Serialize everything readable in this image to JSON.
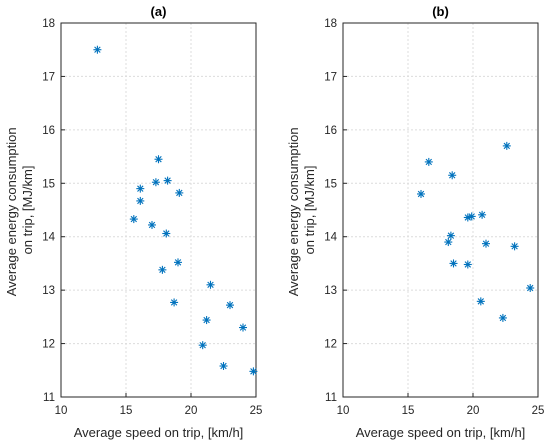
{
  "colors": {
    "marker": "#0072BD",
    "axis": "#262626",
    "grid": "#dcdcdc"
  },
  "chart_data": [
    {
      "type": "scatter",
      "title": "(a)",
      "xlabel": "Average speed on trip, [km/h]",
      "ylabel": [
        "Average energy consumption",
        "on trip, [MJ/km]"
      ],
      "xlim": [
        10,
        25
      ],
      "ylim": [
        11,
        18
      ],
      "xticks": [
        "10",
        "15",
        "20",
        "25"
      ],
      "yticks": [
        "11",
        "12",
        "13",
        "14",
        "15",
        "16",
        "17",
        "18"
      ],
      "grid": true,
      "marker": "asterisk",
      "points": [
        {
          "x": 12.8,
          "y": 17.5
        },
        {
          "x": 17.5,
          "y": 15.45
        },
        {
          "x": 16.1,
          "y": 14.9
        },
        {
          "x": 17.3,
          "y": 15.02
        },
        {
          "x": 18.2,
          "y": 15.05
        },
        {
          "x": 19.1,
          "y": 14.82
        },
        {
          "x": 16.1,
          "y": 14.67
        },
        {
          "x": 15.6,
          "y": 14.33
        },
        {
          "x": 17.0,
          "y": 14.22
        },
        {
          "x": 18.1,
          "y": 14.06
        },
        {
          "x": 19.0,
          "y": 13.52
        },
        {
          "x": 17.8,
          "y": 13.38
        },
        {
          "x": 21.5,
          "y": 13.1
        },
        {
          "x": 18.7,
          "y": 12.77
        },
        {
          "x": 23.0,
          "y": 12.72
        },
        {
          "x": 21.2,
          "y": 12.44
        },
        {
          "x": 24.0,
          "y": 12.3
        },
        {
          "x": 20.9,
          "y": 11.97
        },
        {
          "x": 22.5,
          "y": 11.58
        },
        {
          "x": 24.8,
          "y": 11.48
        }
      ]
    },
    {
      "type": "scatter",
      "title": "(b)",
      "xlabel": "Average speed on trip, [km/h]",
      "ylabel": [
        "Average energy consumption",
        "on trip, [MJ/km]"
      ],
      "xlim": [
        10,
        25
      ],
      "ylim": [
        11,
        18
      ],
      "xticks": [
        "10",
        "15",
        "20",
        "25"
      ],
      "yticks": [
        "11",
        "12",
        "13",
        "14",
        "15",
        "16",
        "17",
        "18"
      ],
      "grid": true,
      "marker": "asterisk",
      "points": [
        {
          "x": 16.6,
          "y": 15.4
        },
        {
          "x": 22.6,
          "y": 15.7
        },
        {
          "x": 18.4,
          "y": 15.15
        },
        {
          "x": 16.0,
          "y": 14.8
        },
        {
          "x": 20.7,
          "y": 14.41
        },
        {
          "x": 19.6,
          "y": 14.36
        },
        {
          "x": 19.9,
          "y": 14.38
        },
        {
          "x": 18.3,
          "y": 14.02
        },
        {
          "x": 18.1,
          "y": 13.9
        },
        {
          "x": 21.0,
          "y": 13.87
        },
        {
          "x": 23.2,
          "y": 13.82
        },
        {
          "x": 18.5,
          "y": 13.5
        },
        {
          "x": 19.6,
          "y": 13.48
        },
        {
          "x": 24.4,
          "y": 13.04
        },
        {
          "x": 20.6,
          "y": 12.79
        },
        {
          "x": 22.3,
          "y": 12.48
        }
      ]
    }
  ]
}
